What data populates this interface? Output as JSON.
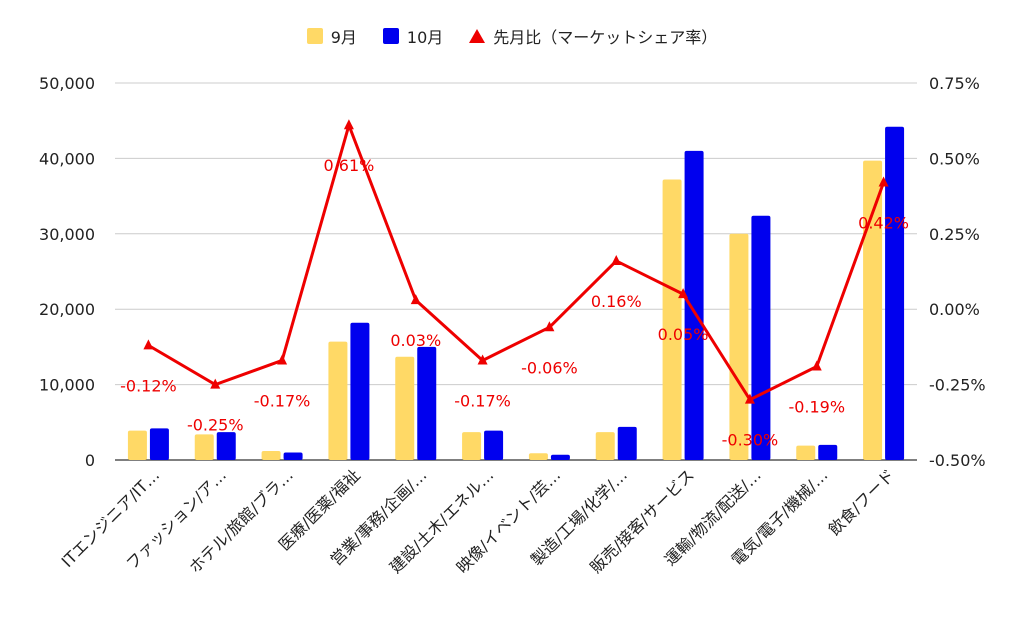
{
  "chart_data": {
    "type": "bar",
    "categories": [
      "ITエンジニア/IT…",
      "ファッション/ア…",
      "ホテル/旅館/ブラ…",
      "医療/医薬/福祉",
      "営業/事務/企画/…",
      "建設/土木/エネル…",
      "映像/イベント/芸…",
      "製造/工場/化学/…",
      "販売/接客/サービス",
      "運輸/物流/配送/…",
      "電気/電子/機械/…",
      "飲食/フード"
    ],
    "series": [
      {
        "name": "9月",
        "type": "bar",
        "color": "#ffd966",
        "values": [
          3900,
          3400,
          1200,
          15700,
          13700,
          3700,
          900,
          3700,
          37200,
          30000,
          1900,
          39700
        ]
      },
      {
        "name": "10月",
        "type": "bar",
        "color": "#0000ee",
        "values": [
          4200,
          3700,
          1000,
          18200,
          15000,
          3900,
          700,
          4400,
          41000,
          32400,
          2000,
          44200
        ]
      },
      {
        "name": "先月比（マーケットシェア率）",
        "type": "line",
        "axis": "right",
        "color": "#ee0000",
        "values": [
          -0.12,
          -0.25,
          -0.17,
          0.61,
          0.03,
          -0.17,
          -0.06,
          0.16,
          0.05,
          -0.3,
          -0.19,
          0.42
        ],
        "labels": [
          "-0.12%",
          "-0.25%",
          "-0.17%",
          "0.61%",
          "0.03%",
          "-0.17%",
          "-0.06%",
          "0.16%",
          "0.05%",
          "-0.30%",
          "-0.19%",
          "0.42%"
        ]
      }
    ],
    "left_axis": {
      "ylim": [
        0,
        50000
      ],
      "ticks": [
        0,
        10000,
        20000,
        30000,
        40000,
        50000
      ],
      "tick_labels": [
        "0",
        "10,000",
        "20,000",
        "30,000",
        "40,000",
        "50,000"
      ]
    },
    "right_axis": {
      "ylim": [
        -0.5,
        0.75
      ],
      "ticks": [
        -0.5,
        -0.25,
        0,
        0.25,
        0.5,
        0.75
      ],
      "tick_labels": [
        "-0.50%",
        "-0.25%",
        "0.00%",
        "0.25%",
        "0.50%",
        "0.75%"
      ]
    },
    "grid": true,
    "legend_position": "top-center"
  }
}
